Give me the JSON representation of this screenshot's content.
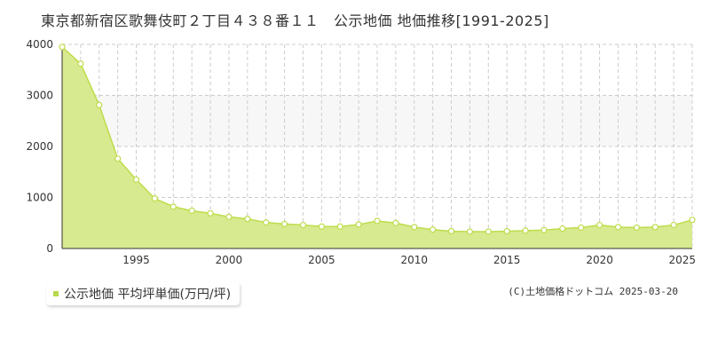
{
  "title": "東京都新宿区歌舞伎町２丁目４３８番１１　公示地価 地価推移[1991-2025]",
  "legend": {
    "label": "公示地価 平均坪単価(万円/坪)"
  },
  "copyright": "(C)土地価格ドットコム 2025-03-20",
  "colors": {
    "area_fill": "#d8ea8f",
    "line": "#bedc4b",
    "marker_fill": "#ffffff",
    "plot_band": "#f7f7f7",
    "grid": "#cccccc",
    "axis": "#333333",
    "legend_marker": "#b9d84a"
  },
  "chart_data": {
    "type": "area",
    "title": "東京都新宿区歌舞伎町２丁目４３８番１１　公示地価 地価推移[1991-2025]",
    "xlabel": "",
    "ylabel": "",
    "xlim": [
      1991,
      2025
    ],
    "ylim": [
      0,
      4000
    ],
    "x_ticks": [
      1995,
      2000,
      2005,
      2010,
      2015,
      2020,
      2025
    ],
    "y_ticks": [
      0,
      1000,
      2000,
      3000,
      4000
    ],
    "grid": true,
    "legend_position": "bottom-left",
    "series": [
      {
        "name": "公示地価 平均坪単価(万円/坪)",
        "x": [
          1991,
          1992,
          1993,
          1994,
          1995,
          1996,
          1997,
          1998,
          1999,
          2000,
          2001,
          2002,
          2003,
          2004,
          2005,
          2006,
          2007,
          2008,
          2009,
          2010,
          2011,
          2012,
          2013,
          2014,
          2015,
          2016,
          2017,
          2018,
          2019,
          2020,
          2021,
          2022,
          2023,
          2024,
          2025
        ],
        "values": [
          3950,
          3620,
          2810,
          1760,
          1350,
          980,
          820,
          740,
          690,
          620,
          580,
          510,
          480,
          460,
          430,
          430,
          470,
          540,
          500,
          420,
          370,
          340,
          330,
          330,
          340,
          350,
          360,
          390,
          410,
          460,
          420,
          410,
          420,
          460,
          560
        ]
      }
    ]
  }
}
